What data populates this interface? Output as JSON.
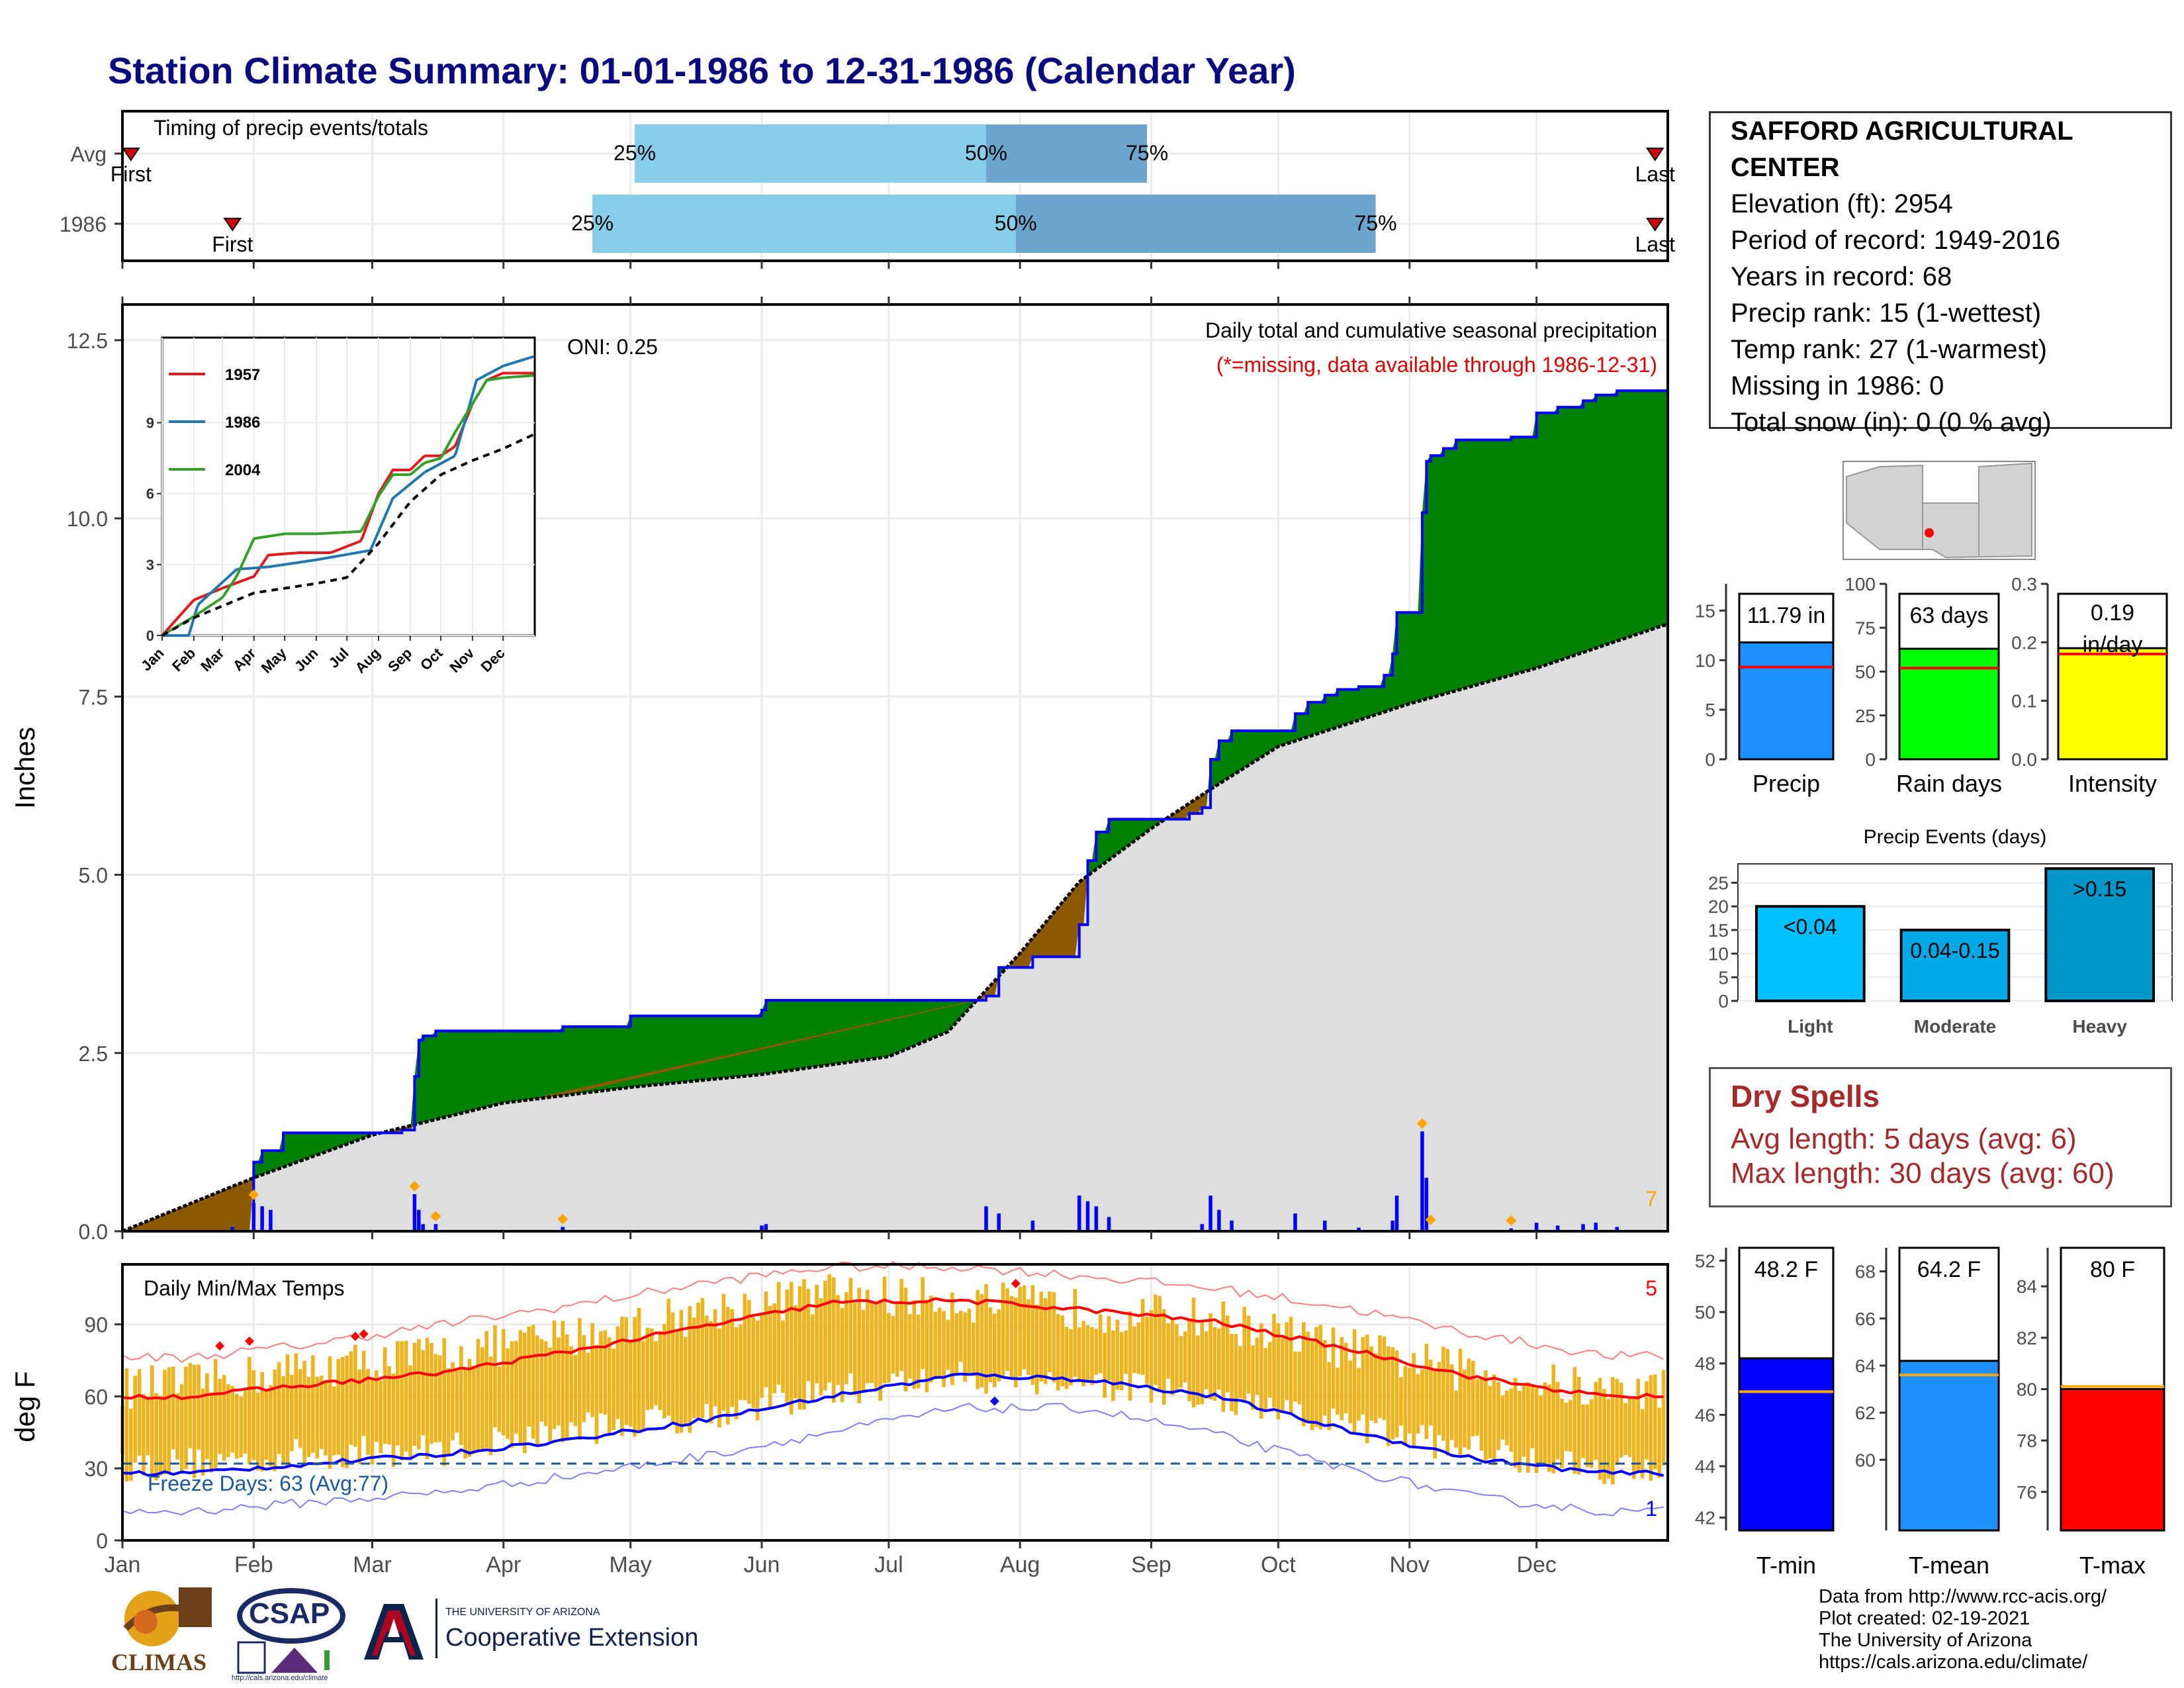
{
  "title": "Station Climate Summary: 01-01-1986 to 12-31-1986 (Calendar Year)",
  "station": {
    "name": "SAFFORD AGRICULTURAL CENTER",
    "elevation": "Elevation (ft): 2954",
    "period": "Period of record: 1949-2016",
    "years": "Years in record: 68",
    "precip_rank": "Precip rank: 15 (1-wettest)",
    "temp_rank": "Temp rank: 27 (1-warmest)",
    "missing": "Missing in 1986: 0",
    "snow": "Total snow (in): 0 (0 % avg)"
  },
  "dry_spells": {
    "heading": "Dry Spells",
    "avg": "Avg length: 5 days (avg: 6)",
    "max": "Max length: 30 days (avg: 60)"
  },
  "credits": [
    "Data from http://www.rcc-acis.org/",
    "Plot created: 02-19-2021",
    "The University of Arizona",
    "https://cals.arizona.edu/climate/"
  ],
  "logos": {
    "climas": "CLIMAS",
    "csap": "CSAP",
    "csap_url": "http://cals.arizona.edu/climate",
    "ua_small": "THE UNIVERSITY OF ARIZONA",
    "ua_big": "Cooperative Extension"
  },
  "colors": {
    "title": "#0a0a80",
    "green": "#008000",
    "brown": "#8b5a00",
    "blue_line": "#0000ff",
    "gold": "#eeb420",
    "climo_gray": "#dedede"
  },
  "chart_data": [
    {
      "type": "bar",
      "id": "timing",
      "title": "Timing of precip events/totals",
      "categories": [
        "Avg",
        "1986"
      ],
      "xlim": [
        "Jan",
        "Dec"
      ],
      "series": [
        {
          "name": "Avg",
          "first": "01-03",
          "q25": "05-02",
          "q50": "07-24",
          "q75": "08-31",
          "last": "12-29"
        },
        {
          "name": "1986",
          "first": "01-27",
          "q25": "04-22",
          "q50": "07-31",
          "q75": "10-24",
          "last": "12-29"
        }
      ],
      "first_label": "First",
      "last_label": "Last",
      "q_labels": [
        "25%",
        "50%",
        "75%"
      ]
    },
    {
      "type": "area",
      "id": "cumulative",
      "title": "Daily total and cumulative seasonal precipitation",
      "subtitle": "(*=missing, data available through 1986-12-31)",
      "oni_label": "ONI: 0.25",
      "ylabel": "Inches",
      "ylim": [
        0,
        13
      ],
      "yticks": [
        "0.0",
        "2.5",
        "5.0",
        "7.5",
        "10.0",
        "12.5"
      ],
      "corner_label": "7",
      "observed_cumulative": [
        [
          "01-27",
          0.0
        ],
        [
          "02-01",
          0.97
        ],
        [
          "02-03",
          1.13
        ],
        [
          "02-08",
          1.38
        ],
        [
          "03-08",
          1.42
        ],
        [
          "03-11",
          2.17
        ],
        [
          "03-12",
          2.68
        ],
        [
          "03-13",
          2.74
        ],
        [
          "03-16",
          2.81
        ],
        [
          "04-15",
          2.87
        ],
        [
          "05-01",
          3.02
        ],
        [
          "06-01",
          3.1
        ],
        [
          "06-02",
          3.24
        ],
        [
          "07-24",
          3.3
        ],
        [
          "07-27",
          3.7
        ],
        [
          "08-04",
          3.85
        ],
        [
          "08-15",
          4.3
        ],
        [
          "08-17",
          5.2
        ],
        [
          "08-19",
          5.6
        ],
        [
          "08-22",
          5.78
        ],
        [
          "09-10",
          5.86
        ],
        [
          "09-13",
          5.94
        ],
        [
          "09-15",
          6.62
        ],
        [
          "09-17",
          6.88
        ],
        [
          "09-20",
          7.02
        ],
        [
          "10-05",
          7.26
        ],
        [
          "10-08",
          7.42
        ],
        [
          "10-12",
          7.52
        ],
        [
          "10-15",
          7.6
        ],
        [
          "10-20",
          7.64
        ],
        [
          "10-26",
          7.8
        ],
        [
          "10-28",
          8.1
        ],
        [
          "10-29",
          8.68
        ],
        [
          "11-04",
          10.08
        ],
        [
          "11-05",
          10.8
        ],
        [
          "11-06",
          10.88
        ],
        [
          "11-09",
          10.98
        ],
        [
          "11-12",
          11.1
        ],
        [
          "11-25",
          11.14
        ],
        [
          "12-01",
          11.48
        ],
        [
          "12-06",
          11.56
        ],
        [
          "12-12",
          11.65
        ],
        [
          "12-15",
          11.73
        ],
        [
          "12-20",
          11.79
        ],
        [
          "12-31",
          11.79
        ]
      ],
      "average_cumulative": [
        [
          "01-01",
          0.0
        ],
        [
          "02-01",
          0.75
        ],
        [
          "03-01",
          1.35
        ],
        [
          "04-01",
          1.8
        ],
        [
          "05-01",
          2.02
        ],
        [
          "06-01",
          2.2
        ],
        [
          "07-01",
          2.45
        ],
        [
          "07-15",
          2.8
        ],
        [
          "08-01",
          3.9
        ],
        [
          "08-15",
          4.9
        ],
        [
          "09-01",
          5.65
        ],
        [
          "09-15",
          6.2
        ],
        [
          "10-01",
          6.8
        ],
        [
          "11-01",
          7.4
        ],
        [
          "12-01",
          7.9
        ],
        [
          "12-31",
          8.5
        ]
      ],
      "daily_precip": [
        [
          "01-27",
          0.06
        ],
        [
          "02-01",
          0.4
        ],
        [
          "02-03",
          0.35
        ],
        [
          "02-05",
          0.3
        ],
        [
          "03-11",
          0.52
        ],
        [
          "03-12",
          0.3
        ],
        [
          "03-13",
          0.1
        ],
        [
          "03-16",
          0.1
        ],
        [
          "04-15",
          0.06
        ],
        [
          "06-01",
          0.08
        ],
        [
          "06-02",
          0.1
        ],
        [
          "07-24",
          0.35
        ],
        [
          "07-27",
          0.25
        ],
        [
          "08-04",
          0.15
        ],
        [
          "08-15",
          0.5
        ],
        [
          "08-17",
          0.42
        ],
        [
          "08-19",
          0.35
        ],
        [
          "08-22",
          0.2
        ],
        [
          "09-13",
          0.1
        ],
        [
          "09-15",
          0.5
        ],
        [
          "09-17",
          0.3
        ],
        [
          "09-20",
          0.15
        ],
        [
          "10-05",
          0.25
        ],
        [
          "10-12",
          0.15
        ],
        [
          "10-20",
          0.05
        ],
        [
          "10-28",
          0.15
        ],
        [
          "10-29",
          0.5
        ],
        [
          "11-04",
          1.4
        ],
        [
          "11-05",
          0.75
        ],
        [
          "11-25",
          0.04
        ],
        [
          "12-01",
          0.12
        ],
        [
          "12-06",
          0.08
        ],
        [
          "12-12",
          0.1
        ],
        [
          "12-15",
          0.12
        ],
        [
          "12-20",
          0.06
        ]
      ],
      "record_markers": [
        "02-01",
        "03-11",
        "03-16",
        "04-15",
        "11-04",
        "11-06",
        "11-25"
      ]
    },
    {
      "type": "line",
      "id": "inset",
      "series": [
        {
          "name": "1957",
          "color": "#e31a1c",
          "points": [
            [
              "01-01",
              0
            ],
            [
              "02-01",
              1.5
            ],
            [
              "03-01",
              2.0
            ],
            [
              "04-01",
              2.5
            ],
            [
              "04-15",
              3.4
            ],
            [
              "05-15",
              3.5
            ],
            [
              "06-15",
              3.5
            ],
            [
              "07-15",
              4.0
            ],
            [
              "08-01",
              6.0
            ],
            [
              "08-15",
              7.0
            ],
            [
              "09-01",
              7.0
            ],
            [
              "09-15",
              7.6
            ],
            [
              "10-01",
              7.6
            ],
            [
              "10-15",
              8.0
            ],
            [
              "11-01",
              9.8
            ],
            [
              "11-15",
              10.8
            ],
            [
              "12-01",
              11.1
            ],
            [
              "12-31",
              11.1
            ]
          ]
        },
        {
          "name": "1986",
          "color": "#1f78b4",
          "points": [
            [
              "01-01",
              0
            ],
            [
              "01-27",
              0
            ],
            [
              "02-05",
              1.3
            ],
            [
              "03-15",
              2.8
            ],
            [
              "04-15",
              2.9
            ],
            [
              "06-01",
              3.2
            ],
            [
              "07-24",
              3.6
            ],
            [
              "08-15",
              5.8
            ],
            [
              "09-15",
              6.9
            ],
            [
              "10-15",
              7.6
            ],
            [
              "11-05",
              10.8
            ],
            [
              "12-01",
              11.4
            ],
            [
              "12-31",
              11.8
            ]
          ]
        },
        {
          "name": "2004",
          "color": "#33a02c",
          "points": [
            [
              "01-01",
              0
            ],
            [
              "02-01",
              0.8
            ],
            [
              "03-01",
              1.6
            ],
            [
              "03-15",
              2.5
            ],
            [
              "04-01",
              4.1
            ],
            [
              "05-01",
              4.3
            ],
            [
              "06-01",
              4.3
            ],
            [
              "07-15",
              4.4
            ],
            [
              "08-01",
              5.9
            ],
            [
              "08-15",
              6.8
            ],
            [
              "09-01",
              6.8
            ],
            [
              "09-15",
              7.3
            ],
            [
              "10-01",
              7.5
            ],
            [
              "10-15",
              8.6
            ],
            [
              "11-01",
              9.8
            ],
            [
              "11-15",
              10.8
            ],
            [
              "12-01",
              10.9
            ],
            [
              "12-31",
              11.0
            ]
          ]
        },
        {
          "name": "avg",
          "color": "#000000",
          "dashed": true,
          "points": [
            [
              "01-01",
              0
            ],
            [
              "02-01",
              0.75
            ],
            [
              "04-01",
              1.8
            ],
            [
              "06-01",
              2.2
            ],
            [
              "07-01",
              2.45
            ],
            [
              "08-01",
              3.9
            ],
            [
              "09-01",
              5.65
            ],
            [
              "10-01",
              6.8
            ],
            [
              "11-01",
              7.4
            ],
            [
              "12-01",
              7.9
            ],
            [
              "12-31",
              8.5
            ]
          ]
        }
      ],
      "yticks": [
        0,
        3,
        6,
        9
      ],
      "months": [
        "Jan",
        "Feb",
        "Mar",
        "Apr",
        "May",
        "Jun",
        "Jul",
        "Aug",
        "Sep",
        "Oct",
        "Nov",
        "Dec"
      ]
    },
    {
      "type": "line",
      "id": "temps",
      "title": "Daily Min/Max Temps",
      "ylabel": "deg F",
      "ylim": [
        0,
        115
      ],
      "yticks": [
        0,
        30,
        60,
        90
      ],
      "freeze_label": "Freeze Days: 63 (Avg:77)",
      "freeze_line": 32,
      "max_record_count": "5",
      "min_record_count": "1",
      "avg_max_monthly": [
        60,
        65,
        70,
        79,
        89,
        99,
        100,
        96,
        91,
        80,
        68,
        60
      ],
      "avg_min_monthly": [
        28,
        32,
        36,
        42,
        50,
        60,
        69,
        67,
        60,
        46,
        34,
        28
      ],
      "record_max_monthly": [
        76,
        82,
        90,
        98,
        107,
        114,
        114,
        110,
        105,
        97,
        86,
        77
      ],
      "record_min_monthly": [
        12,
        16,
        20,
        27,
        35,
        45,
        55,
        55,
        44,
        30,
        18,
        12
      ],
      "obs_max_monthly": [
        65,
        72,
        78,
        85,
        95,
        103,
        100,
        96,
        92,
        80,
        70,
        62
      ],
      "obs_min_monthly": [
        32,
        36,
        38,
        46,
        52,
        62,
        68,
        66,
        58,
        48,
        38,
        30
      ],
      "x_labels": [
        "Jan",
        "Feb",
        "Mar",
        "Apr",
        "May",
        "Jun",
        "Jul",
        "Aug",
        "Sep",
        "Oct",
        "Nov",
        "Dec"
      ]
    },
    {
      "type": "bar",
      "id": "precip_total",
      "label": "11.79 in",
      "category": "Precip",
      "value": 11.79,
      "avg": 9.3,
      "ylim": [
        0,
        17.7
      ],
      "yticks": [
        0,
        5,
        10,
        15
      ],
      "color": "#1e90ff"
    },
    {
      "type": "bar",
      "id": "rain_days",
      "label": "63 days",
      "category": "Rain days",
      "value": 63,
      "avg": 52,
      "ylim": [
        0,
        100
      ],
      "yticks": [
        0,
        25,
        50,
        75,
        100
      ],
      "color": "#00ff00"
    },
    {
      "type": "bar",
      "id": "intensity",
      "label_a": "0.19",
      "label_b": "in/day",
      "category": "Intensity",
      "value": 0.19,
      "avg": 0.18,
      "ylim": [
        0,
        0.3
      ],
      "yticks": [
        "0.0",
        "0.1",
        "0.2",
        "0.3"
      ],
      "color": "#ffff00"
    },
    {
      "type": "bar",
      "id": "events",
      "title": "Precip Events (days)",
      "categories": [
        "Light",
        "Moderate",
        "Heavy"
      ],
      "labels": [
        "<0.04",
        "0.04-0.15",
        ">0.15"
      ],
      "values": [
        20,
        15,
        28
      ],
      "colors": [
        "#00bfff",
        "#00a8e6",
        "#0096c8"
      ],
      "ylim": [
        0,
        29
      ],
      "yticks": [
        0,
        5,
        10,
        15,
        20,
        25
      ]
    },
    {
      "type": "bar",
      "id": "tmin",
      "label": "48.2 F",
      "category": "T-min",
      "value": 48.2,
      "avg": 46.9,
      "ylim": [
        41.5,
        52.5
      ],
      "yticks": [
        42,
        44,
        46,
        48,
        50,
        52
      ],
      "color": "#0000ff"
    },
    {
      "type": "bar",
      "id": "tmean",
      "label": "64.2 F",
      "category": "T-mean",
      "value": 64.2,
      "avg": 63.6,
      "ylim": [
        57,
        69
      ],
      "yticks": [
        60,
        62,
        64,
        66,
        68
      ],
      "color": "#1e90ff"
    },
    {
      "type": "bar",
      "id": "tmax",
      "label": "80 F",
      "category": "T-max",
      "value": 80,
      "avg": 80.1,
      "ylim": [
        74.5,
        85.5
      ],
      "yticks": [
        76,
        78,
        80,
        82,
        84
      ],
      "color": "#ff0000"
    }
  ]
}
